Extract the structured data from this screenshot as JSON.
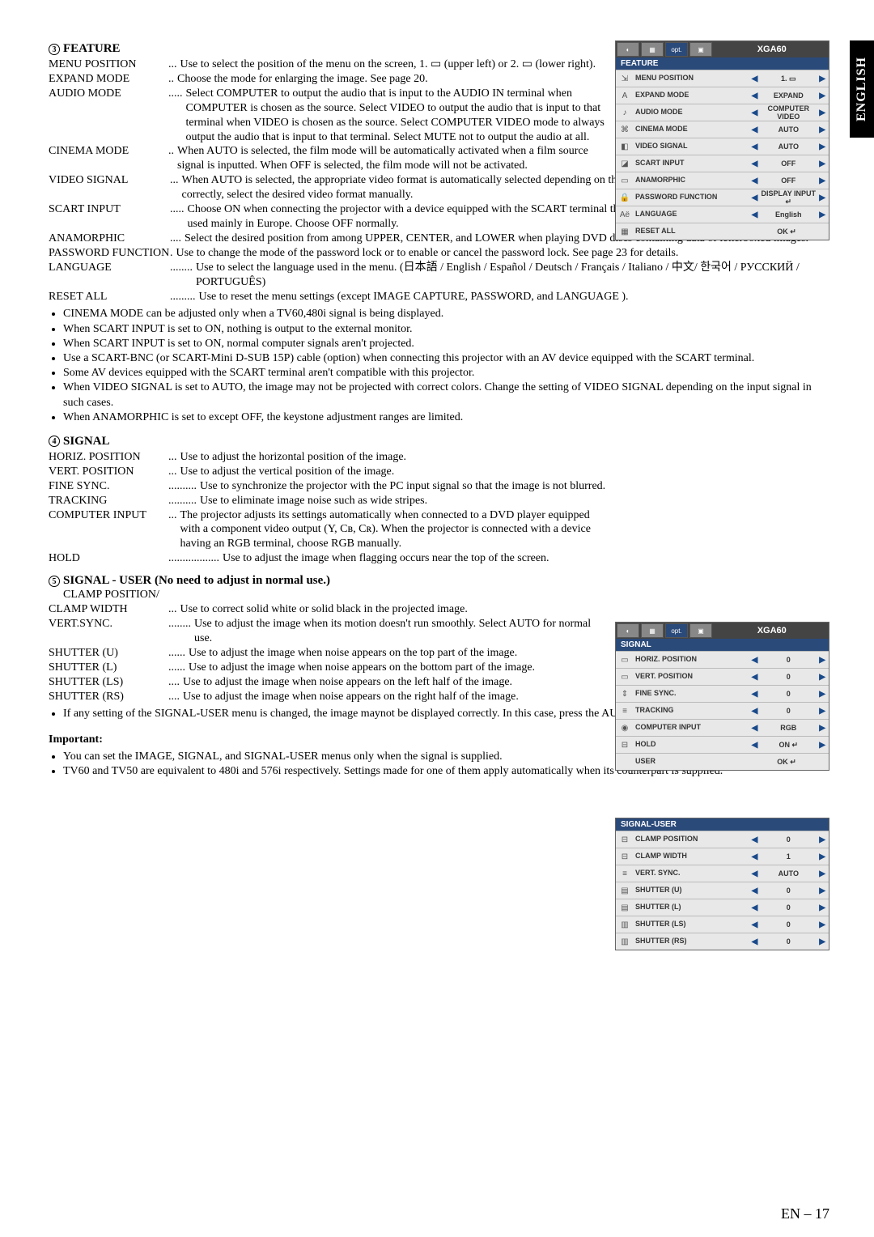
{
  "side_tab": "ENGLISH",
  "sections": {
    "feature": {
      "num": "3",
      "title": "FEATURE",
      "items": [
        {
          "label": "MENU POSITION",
          "sep": "...",
          "body": "Use to select the position of the menu on the screen,  1. ▭ (upper left) or 2. ▭ (lower right)."
        },
        {
          "label": "EXPAND MODE",
          "sep": "..",
          "body": "Choose the mode for enlarging the image. See page 20."
        },
        {
          "label": "AUDIO MODE",
          "sep": ".....",
          "body": "Select COMPUTER to output the audio that is input to the AUDIO IN terminal when COMPUTER is chosen as the source. Select VIDEO to output the audio that is input to that terminal when VIDEO is chosen as the source. Select COMPUTER VIDEO mode to always output the audio that is input to that terminal. Select MUTE not to output the audio at all."
        },
        {
          "label": "CINEMA MODE",
          "sep": "..",
          "body": "When AUTO is selected, the film mode will be automatically activated when a film source signal is inputted. When OFF is selected, the film mode will not be activated."
        },
        {
          "label": "VIDEO SIGNAL",
          "sep": "...",
          "body": "When AUTO is selected, the appropriate video format is automatically selected depending on the input signal. If the image isn't displayed correctly, select the desired video format manually."
        },
        {
          "label": "SCART INPUT",
          "sep": ".....",
          "body": "Choose ON when connecting the projector with a device equipped with the SCART terminal that can output RGB signal. SCART terminal is used mainly in Europe. Choose OFF normally."
        },
        {
          "label": "ANAMORPHIC",
          "sep": "....",
          "body": "Select the desired position from among UPPER, CENTER, and LOWER when playing DVD discs containing data of letterboxed images."
        },
        {
          "label": "PASSWORD FUNCTION",
          "sep": ".",
          "body": "Use to change the mode of the password lock or to enable or cancel the password lock. See page 23 for details."
        },
        {
          "label": "LANGUAGE",
          "sep": "........",
          "body": "Use to select the language used in the menu. (日本語 / English / Español / Deutsch / Français / Italiano / 中文/ 한국어 / РУССКИЙ / PORTUGUÊS)"
        },
        {
          "label": "RESET ALL",
          "sep": ".........",
          "body": "Use to reset the menu settings (except IMAGE CAPTURE, PASSWORD, and LANGUAGE )."
        }
      ],
      "notes": [
        "CINEMA MODE can be adjusted only when a TV60,480i signal is being displayed.",
        "When SCART INPUT is set to ON, nothing is output to the external monitor.",
        "When SCART INPUT is set to ON, normal computer signals aren't projected.",
        "Use a SCART-BNC (or SCART-Mini D-SUB 15P) cable (option) when connecting this projector with an AV device equipped with the SCART terminal.",
        "Some AV devices equipped with the SCART terminal aren't compatible with this projector.",
        "When VIDEO SIGNAL is set to AUTO, the image may not be projected with correct colors. Change the setting of VIDEO SIGNAL depending on the input signal in such cases.",
        "When ANAMORPHIC is set to except OFF, the keystone adjustment ranges are limited."
      ]
    },
    "signal": {
      "num": "4",
      "title": "SIGNAL",
      "items": [
        {
          "label": "HORIZ. POSITION",
          "sep": "...",
          "body": "Use to adjust the horizontal position of the image."
        },
        {
          "label": "VERT. POSITION",
          "sep": "...",
          "body": "Use to adjust the vertical position of the image."
        },
        {
          "label": "FINE SYNC.",
          "sep": "..........",
          "body": "Use to synchronize the projector with the PC input signal so that the image is not blurred."
        },
        {
          "label": "TRACKING",
          "sep": "..........",
          "body": "Use to eliminate image noise such as wide stripes."
        },
        {
          "label": "COMPUTER INPUT",
          "sep": "...",
          "body": "The projector adjusts its settings automatically when connected to a DVD player equipped with a component video output (Y, Cʙ, Cʀ). When the projector is connected with a device having an RGB terminal, choose RGB manually."
        },
        {
          "label": "HOLD",
          "sep": "..................",
          "body": "Use to adjust the image when flagging occurs near the top of the screen."
        }
      ]
    },
    "signal_user": {
      "num": "5",
      "title": "SIGNAL - USER (No need to adjust in normal use.)",
      "lead": "CLAMP POSITION/",
      "items": [
        {
          "label": "CLAMP WIDTH",
          "sep": "...",
          "body": "Use to correct solid white or solid black in the projected image."
        },
        {
          "label": "VERT.SYNC.",
          "sep": "........",
          "body": "Use to adjust the image when its motion doesn't run smoothly. Select AUTO for normal use."
        },
        {
          "label": "SHUTTER (U)",
          "sep": "......",
          "body": "Use to adjust the image when noise appears on the top part of the image."
        },
        {
          "label": "SHUTTER (L)",
          "sep": "......",
          "body": "Use to adjust the image when noise appears on the bottom part of the image."
        },
        {
          "label": "SHUTTER (LS)",
          "sep": "....",
          "body": "Use to adjust the image when noise appears on the left half of the image."
        },
        {
          "label": "SHUTTER (RS)",
          "sep": "....",
          "body": "Use to adjust the image when noise appears on the right half of the image."
        }
      ],
      "notes": [
        "If any setting of the SIGNAL-USER menu is changed, the image maynot be displayed correctly. In this case, press the AUTO POSITION button."
      ]
    },
    "important": {
      "title": "Important:",
      "notes": [
        "You can set the IMAGE, SIGNAL, and SIGNAL-USER menus only when the signal is supplied.",
        "TV60 and TV50 are equivalent to 480i and 576i respectively. Settings made for one of them apply automatically when its counterpart is supplied."
      ]
    }
  },
  "menus": {
    "feature": {
      "header_title": "XGA60",
      "tab_label": "opt.",
      "cat": "FEATURE",
      "rows": [
        {
          "icon": "⇲",
          "label": "MENU POSITION",
          "val": "1. ▭"
        },
        {
          "icon": "A",
          "label": "EXPAND MODE",
          "val": "EXPAND"
        },
        {
          "icon": "♪",
          "label": "AUDIO MODE",
          "val": "COMPUTER VIDEO"
        },
        {
          "icon": "⌘",
          "label": "CINEMA MODE",
          "val": "AUTO"
        },
        {
          "icon": "◧",
          "label": "VIDEO SIGNAL",
          "val": "AUTO"
        },
        {
          "icon": "◪",
          "label": "SCART INPUT",
          "val": "OFF"
        },
        {
          "icon": "▭",
          "label": "ANAMORPHIC",
          "val": "OFF"
        },
        {
          "icon": "🔒",
          "label": "PASSWORD FUNCTION",
          "val": "DISPLAY INPUT ↵"
        },
        {
          "icon": "Aё",
          "label": "LANGUAGE",
          "val": "English"
        },
        {
          "icon": "▦",
          "label": "RESET ALL",
          "val": "OK ↵",
          "notri": true
        }
      ]
    },
    "signal": {
      "header_title": "XGA60",
      "tab_label": "opt.",
      "cat": "SIGNAL",
      "rows": [
        {
          "icon": "▭",
          "label": "HORIZ. POSITION",
          "val": "0"
        },
        {
          "icon": "▭",
          "label": "VERT. POSITION",
          "val": "0"
        },
        {
          "icon": "⇕",
          "label": "FINE SYNC.",
          "val": "0"
        },
        {
          "icon": "≡",
          "label": "TRACKING",
          "val": "0"
        },
        {
          "icon": "◉",
          "label": "COMPUTER INPUT",
          "val": "RGB"
        },
        {
          "icon": "⊟",
          "label": "HOLD",
          "val": "ON ↵"
        },
        {
          "icon": "",
          "label": "USER",
          "val": "OK ↵",
          "notri": true
        }
      ]
    },
    "signal_user": {
      "cat": "SIGNAL-USER",
      "rows": [
        {
          "icon": "⊟",
          "label": "CLAMP POSITION",
          "val": "0"
        },
        {
          "icon": "⊟",
          "label": "CLAMP WIDTH",
          "val": "1"
        },
        {
          "icon": "≡",
          "label": "VERT. SYNC.",
          "val": "AUTO"
        },
        {
          "icon": "▤",
          "label": "SHUTTER (U)",
          "val": "0"
        },
        {
          "icon": "▤",
          "label": "SHUTTER (L)",
          "val": "0"
        },
        {
          "icon": "▥",
          "label": "SHUTTER (LS)",
          "val": "0"
        },
        {
          "icon": "▥",
          "label": "SHUTTER (RS)",
          "val": "0"
        }
      ]
    }
  },
  "footer": "EN – 17"
}
